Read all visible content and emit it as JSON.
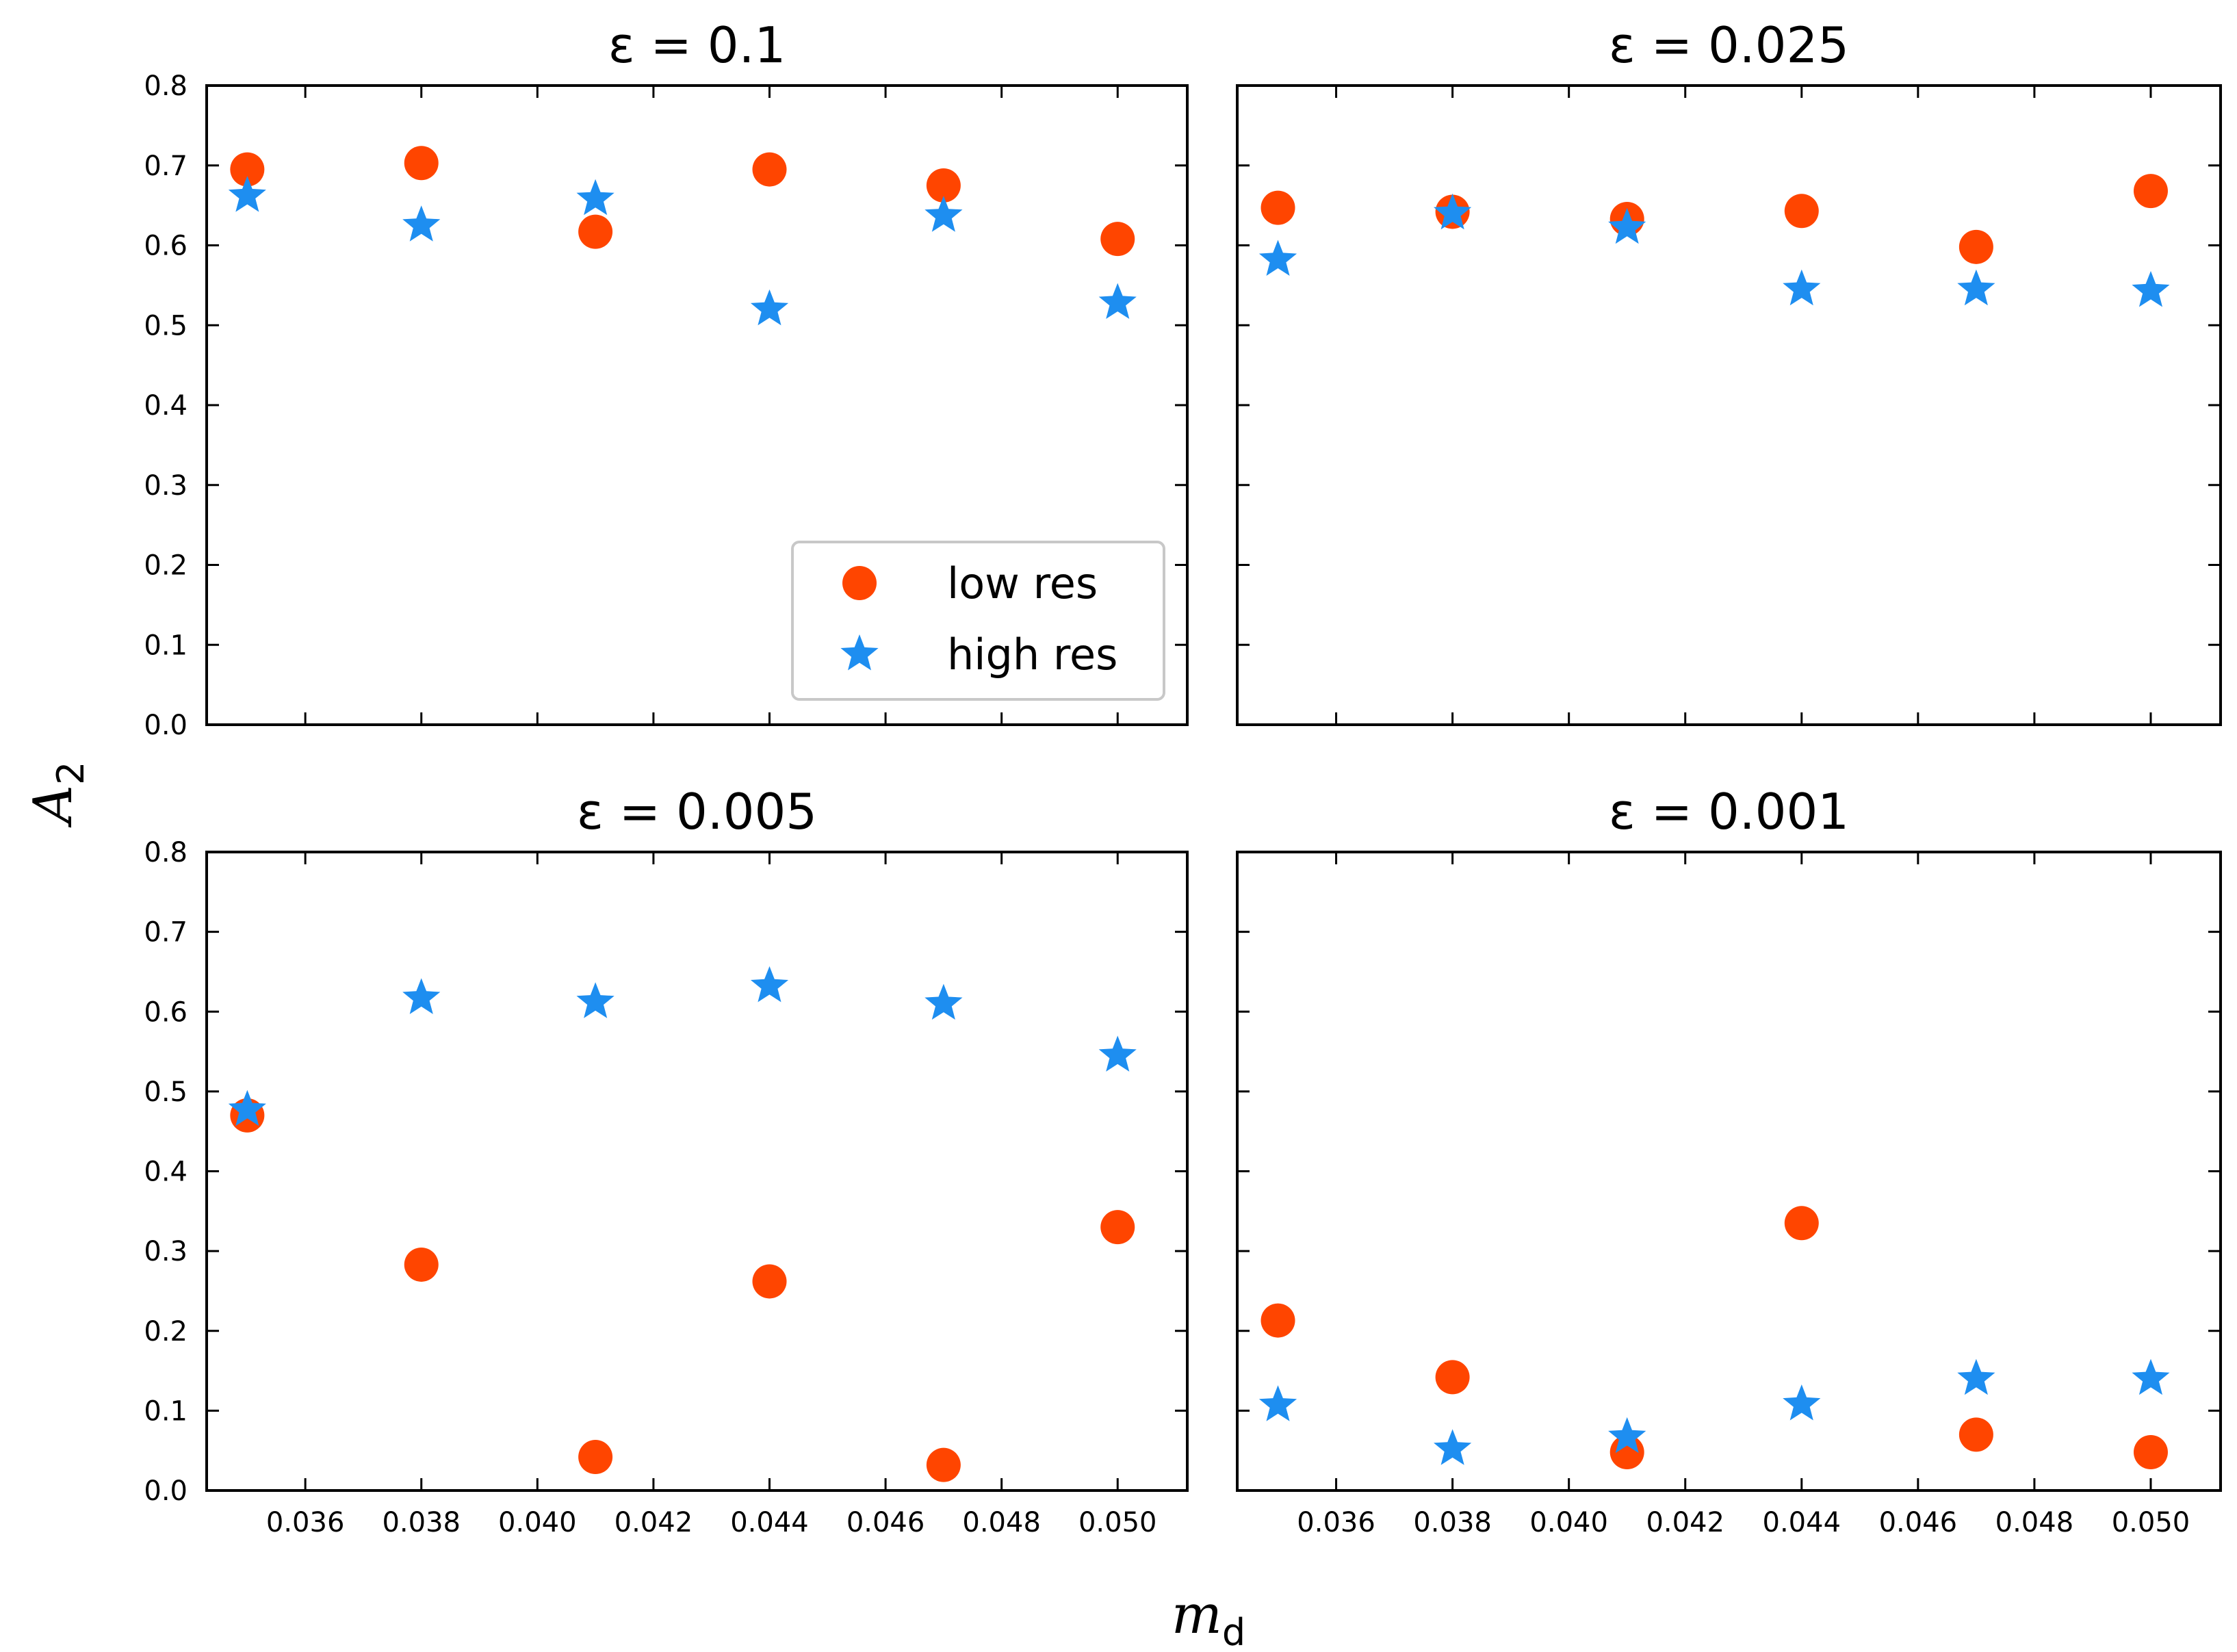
{
  "chart_data": {
    "type": "scatter",
    "ylabel": "A",
    "ylabel_sub": "2",
    "xlabel": "m",
    "xlabel_sub": "d",
    "title_prefix": "ε = ",
    "xlim": [
      0.0343,
      0.0512
    ],
    "ylim": [
      0.0,
      0.8
    ],
    "xticks": [
      "0.036",
      "0.038",
      "0.040",
      "0.042",
      "0.044",
      "0.046",
      "0.048",
      "0.050"
    ],
    "xtick_values": [
      0.036,
      0.038,
      0.04,
      0.042,
      0.044,
      0.046,
      0.048,
      0.05
    ],
    "yticks": [
      "0.0",
      "0.1",
      "0.2",
      "0.3",
      "0.4",
      "0.5",
      "0.6",
      "0.7",
      "0.8"
    ],
    "ytick_values": [
      0.0,
      0.1,
      0.2,
      0.3,
      0.4,
      0.5,
      0.6,
      0.7,
      0.8
    ],
    "legend": {
      "location": "lower-right of top-left panel",
      "entries": [
        {
          "label": "low res",
          "marker": "circle",
          "color": "#ff4500"
        },
        {
          "label": "high res",
          "marker": "star",
          "color": "#1e8ef0"
        }
      ]
    },
    "x": [
      0.035,
      0.038,
      0.041,
      0.044,
      0.047,
      0.05
    ],
    "panels": [
      {
        "title_value": "0.1",
        "series": [
          {
            "name": "low res",
            "values": [
              0.695,
              0.703,
              0.617,
              0.695,
              0.675,
              0.608
            ]
          },
          {
            "name": "high res",
            "values": [
              0.662,
              0.625,
              0.658,
              0.52,
              0.637,
              0.528
            ]
          }
        ]
      },
      {
        "title_value": "0.025",
        "series": [
          {
            "name": "low res",
            "values": [
              0.647,
              0.642,
              0.633,
              0.643,
              0.598,
              0.668
            ]
          },
          {
            "name": "high res",
            "values": [
              0.582,
              0.64,
              0.622,
              0.545,
              0.545,
              0.543
            ]
          }
        ]
      },
      {
        "title_value": "0.005",
        "series": [
          {
            "name": "low res",
            "values": [
              0.47,
              0.283,
              0.042,
              0.262,
              0.032,
              0.33
            ]
          },
          {
            "name": "high res",
            "values": [
              0.477,
              0.617,
              0.612,
              0.632,
              0.61,
              0.545
            ]
          }
        ]
      },
      {
        "title_value": "0.001",
        "series": [
          {
            "name": "low res",
            "values": [
              0.213,
              0.142,
              0.048,
              0.335,
              0.07,
              0.048
            ]
          },
          {
            "name": "high res",
            "values": [
              0.107,
              0.052,
              0.067,
              0.108,
              0.14,
              0.14
            ]
          }
        ]
      }
    ]
  }
}
